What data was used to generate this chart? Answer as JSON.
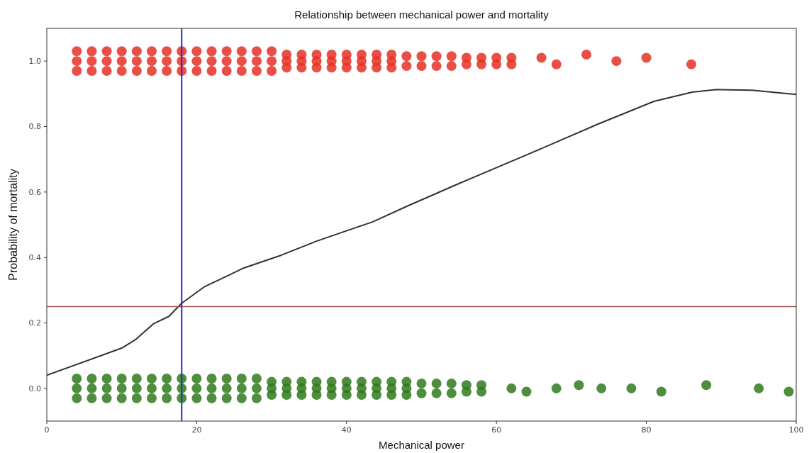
{
  "chart_data": {
    "type": "scatter",
    "title": "Relationship between mechanical power and mortality",
    "xlabel": "Mechanical power",
    "ylabel": "Probability of mortality",
    "xlim": [
      0,
      100
    ],
    "ylim": [
      -0.1,
      1.1
    ],
    "xticks": [
      0,
      20,
      40,
      60,
      80,
      100
    ],
    "yticks": [
      {
        "value": 0,
        "label": "0.0"
      },
      {
        "value": 0.2,
        "label": "0.2"
      },
      {
        "value": 0.4,
        "label": "0.4"
      },
      {
        "value": 0.6,
        "label": "0.6"
      },
      {
        "value": 0.8,
        "label": "0.8"
      },
      {
        "value": 1,
        "label": "1.0"
      }
    ],
    "series": [
      {
        "marker": "circle",
        "color": "#e53025",
        "x": [
          4,
          4,
          4,
          6,
          6,
          6,
          8,
          8,
          8,
          10,
          10,
          10,
          12,
          12,
          12,
          14,
          14,
          14,
          16,
          16,
          16,
          18,
          18,
          18,
          20,
          20,
          20,
          22,
          22,
          22,
          24,
          24,
          24,
          26,
          26,
          26,
          28,
          28,
          28,
          30,
          30,
          30,
          32,
          32,
          32,
          34,
          34,
          34,
          36,
          36,
          36,
          38,
          38,
          38,
          40,
          40,
          40,
          42,
          42,
          42,
          44,
          44,
          44,
          46,
          46,
          46,
          48,
          48,
          50,
          50,
          52,
          52,
          54,
          54,
          56,
          56,
          58,
          58,
          60,
          60,
          62,
          62,
          66,
          68,
          72,
          76,
          80,
          86
        ],
        "values": [
          1.03,
          1,
          0.97,
          1.03,
          1,
          0.97,
          1.03,
          1,
          0.97,
          1.03,
          1,
          0.97,
          1.03,
          1,
          0.97,
          1.03,
          1,
          0.97,
          1.03,
          1,
          0.97,
          1.03,
          1,
          0.97,
          1.03,
          1,
          0.97,
          1.03,
          1,
          0.97,
          1.03,
          1,
          0.97,
          1.03,
          1,
          0.97,
          1.03,
          1,
          0.97,
          1.03,
          1,
          0.97,
          1.02,
          1,
          0.98,
          1.02,
          1,
          0.98,
          1.02,
          1,
          0.98,
          1.02,
          1,
          0.98,
          1.02,
          1,
          0.98,
          1.02,
          1,
          0.98,
          1.02,
          1,
          0.98,
          1.02,
          1,
          0.98,
          1.015,
          0.985,
          1.015,
          0.985,
          1.015,
          0.985,
          1.015,
          0.985,
          1.01,
          0.99,
          1.01,
          0.99,
          1.01,
          0.99,
          1.01,
          0.99,
          1.01,
          0.99,
          1.02,
          1,
          1.01,
          0.99
        ]
      },
      {
        "marker": "circle",
        "color": "#2f7a1c",
        "x": [
          4,
          4,
          4,
          6,
          6,
          6,
          8,
          8,
          8,
          10,
          10,
          10,
          12,
          12,
          12,
          14,
          14,
          14,
          16,
          16,
          16,
          18,
          18,
          18,
          20,
          20,
          20,
          22,
          22,
          22,
          24,
          24,
          24,
          26,
          26,
          26,
          28,
          28,
          28,
          30,
          30,
          30,
          32,
          32,
          32,
          34,
          34,
          34,
          36,
          36,
          36,
          38,
          38,
          38,
          40,
          40,
          40,
          42,
          42,
          42,
          44,
          44,
          44,
          46,
          46,
          46,
          48,
          48,
          48,
          50,
          50,
          52,
          52,
          54,
          54,
          56,
          56,
          58,
          58,
          62,
          64,
          68,
          71,
          74,
          78,
          82,
          88,
          95,
          99
        ],
        "values": [
          0.03,
          0,
          -0.03,
          0.03,
          0,
          -0.03,
          0.03,
          0,
          -0.03,
          0.03,
          0,
          -0.03,
          0.03,
          0,
          -0.03,
          0.03,
          0,
          -0.03,
          0.03,
          0,
          -0.03,
          0.03,
          0,
          -0.03,
          0.03,
          0,
          -0.03,
          0.03,
          0,
          -0.03,
          0.03,
          0,
          -0.03,
          0.03,
          0,
          -0.03,
          0.03,
          0,
          -0.03,
          0.02,
          0,
          -0.02,
          0.02,
          0,
          -0.02,
          0.02,
          0,
          -0.02,
          0.02,
          0,
          -0.02,
          0.02,
          0,
          -0.02,
          0.02,
          0,
          -0.02,
          0.02,
          0,
          -0.02,
          0.02,
          0,
          -0.02,
          0.02,
          0,
          -0.02,
          0.02,
          0,
          -0.02,
          0.015,
          -0.015,
          0.015,
          -0.015,
          0.015,
          -0.015,
          0.01,
          -0.01,
          0.01,
          -0.01,
          0,
          -0.01,
          0,
          0.01,
          0,
          0,
          -0.01,
          0.01,
          0,
          -0.01
        ]
      },
      {
        "type": "line",
        "color": "#333333",
        "x": [
          0,
          10,
          11.9,
          14.2,
          16.3,
          18,
          21,
          24.3,
          26.3,
          31.3,
          36,
          43.5,
          48.2,
          54.7,
          64.1,
          73.5,
          81,
          86.1,
          89.4,
          94.1,
          100
        ],
        "values": [
          0.04,
          0.123,
          0.15,
          0.197,
          0.22,
          0.26,
          0.31,
          0.346,
          0.368,
          0.407,
          0.45,
          0.509,
          0.558,
          0.623,
          0.714,
          0.807,
          0.877,
          0.905,
          0.913,
          0.911,
          0.898
        ]
      }
    ],
    "ref_lines": [
      {
        "axis": "y",
        "value": 0.25,
        "color": "#a05050"
      },
      {
        "axis": "x",
        "value": 18,
        "color": "#2a2ac0"
      }
    ]
  }
}
